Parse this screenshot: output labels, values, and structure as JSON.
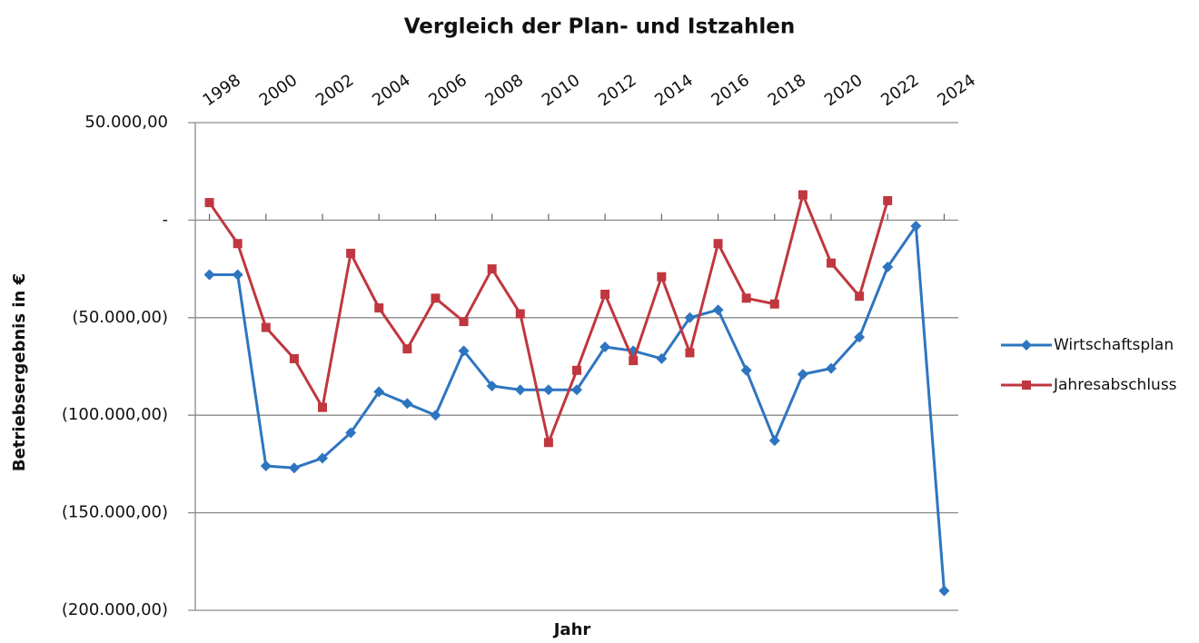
{
  "chart_data": {
    "type": "line",
    "title": "Vergleich der Plan- und Istzahlen",
    "x_label": "Jahr",
    "y_label": "Betriebsergebnis in €",
    "x": [
      1998,
      1999,
      2000,
      2001,
      2002,
      2003,
      2004,
      2005,
      2006,
      2007,
      2008,
      2009,
      2010,
      2011,
      2012,
      2013,
      2014,
      2015,
      2016,
      2017,
      2018,
      2019,
      2020,
      2021,
      2022,
      2023,
      2024
    ],
    "series": [
      {
        "name": "Wirtschaftsplan",
        "color": "#2e75c0",
        "marker": "diamond",
        "values": [
          -28000,
          -28000,
          -126000,
          -127000,
          -122000,
          -109000,
          -88000,
          -94000,
          -100000,
          -67000,
          -85000,
          -87000,
          -87000,
          -87000,
          -65000,
          -67000,
          -71000,
          -50000,
          -46000,
          -77000,
          -113000,
          -79000,
          -76000,
          -60000,
          -24000,
          -3000,
          -190000
        ]
      },
      {
        "name": "Jahresabschluss",
        "color": "#c0373f",
        "marker": "square",
        "values": [
          9000,
          -12000,
          -55000,
          -71000,
          -96000,
          -17000,
          -45000,
          -66000,
          -40000,
          -52000,
          -25000,
          -48000,
          -114000,
          -77000,
          -38000,
          -72000,
          -29000,
          -68000,
          -12000,
          -40000,
          -43000,
          13000,
          -22000,
          -39000,
          10000,
          null,
          null
        ]
      }
    ],
    "xlim": [
      1997.5,
      2024.5
    ],
    "xticks": [
      1998,
      2000,
      2002,
      2004,
      2006,
      2008,
      2010,
      2012,
      2014,
      2016,
      2018,
      2020,
      2022,
      2024
    ],
    "ylim": [
      -200000,
      50000
    ],
    "yticks": [
      {
        "value": -200000,
        "label": "(200.000,00)"
      },
      {
        "value": -150000,
        "label": "(150.000,00)"
      },
      {
        "value": -100000,
        "label": "(100.000,00)"
      },
      {
        "value": -50000,
        "label": "(50.000,00)"
      },
      {
        "value": 0,
        "label": "-"
      },
      {
        "value": 50000,
        "label": "50.000,00"
      }
    ],
    "grid": true,
    "legend": "right"
  }
}
